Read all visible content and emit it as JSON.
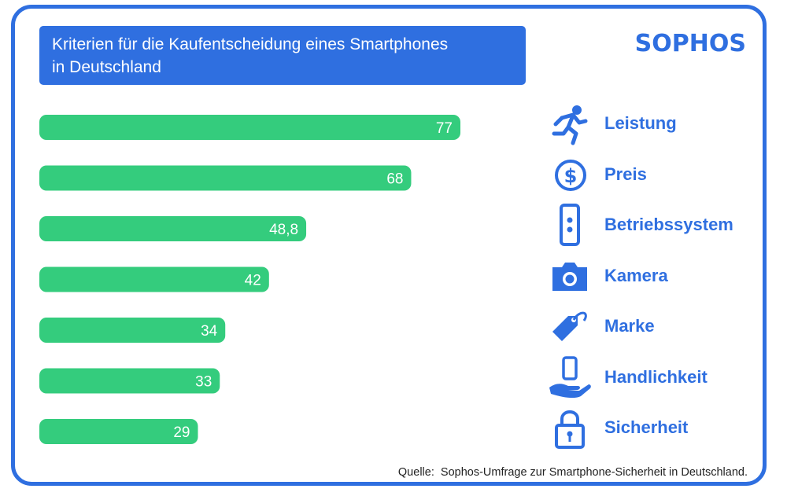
{
  "brand": {
    "logo": "SOPHOS",
    "accent_color": "#2f6fe0",
    "bar_color": "#34cc7d"
  },
  "chart_data": {
    "type": "bar",
    "orientation": "horizontal",
    "title": "Kriterien für die Kaufentscheidung eines Smartphones in Deutschland",
    "title_lines": [
      "Kriterien für die Kaufentscheidung eines Smartphones",
      "in Deutschland"
    ],
    "categories": [
      "Leistung",
      "Preis",
      "Betriebssystem",
      "Kamera",
      "Marke",
      "Handlichkeit",
      "Sicherheit"
    ],
    "values": [
      77,
      68,
      48.8,
      42,
      34,
      33,
      29
    ],
    "value_labels": [
      "77",
      "68",
      "48,8",
      "42",
      "34",
      "33",
      "29"
    ],
    "icons": [
      "runner-icon",
      "dollar-coin-icon",
      "phone-icon",
      "camera-icon",
      "tag-icon",
      "hand-phone-icon",
      "padlock-icon"
    ],
    "xlabel": "",
    "ylabel": "",
    "grid": false
  },
  "source": "Quelle:  Sophos-Umfrage zur Smartphone-Sicherheit in Deutschland."
}
